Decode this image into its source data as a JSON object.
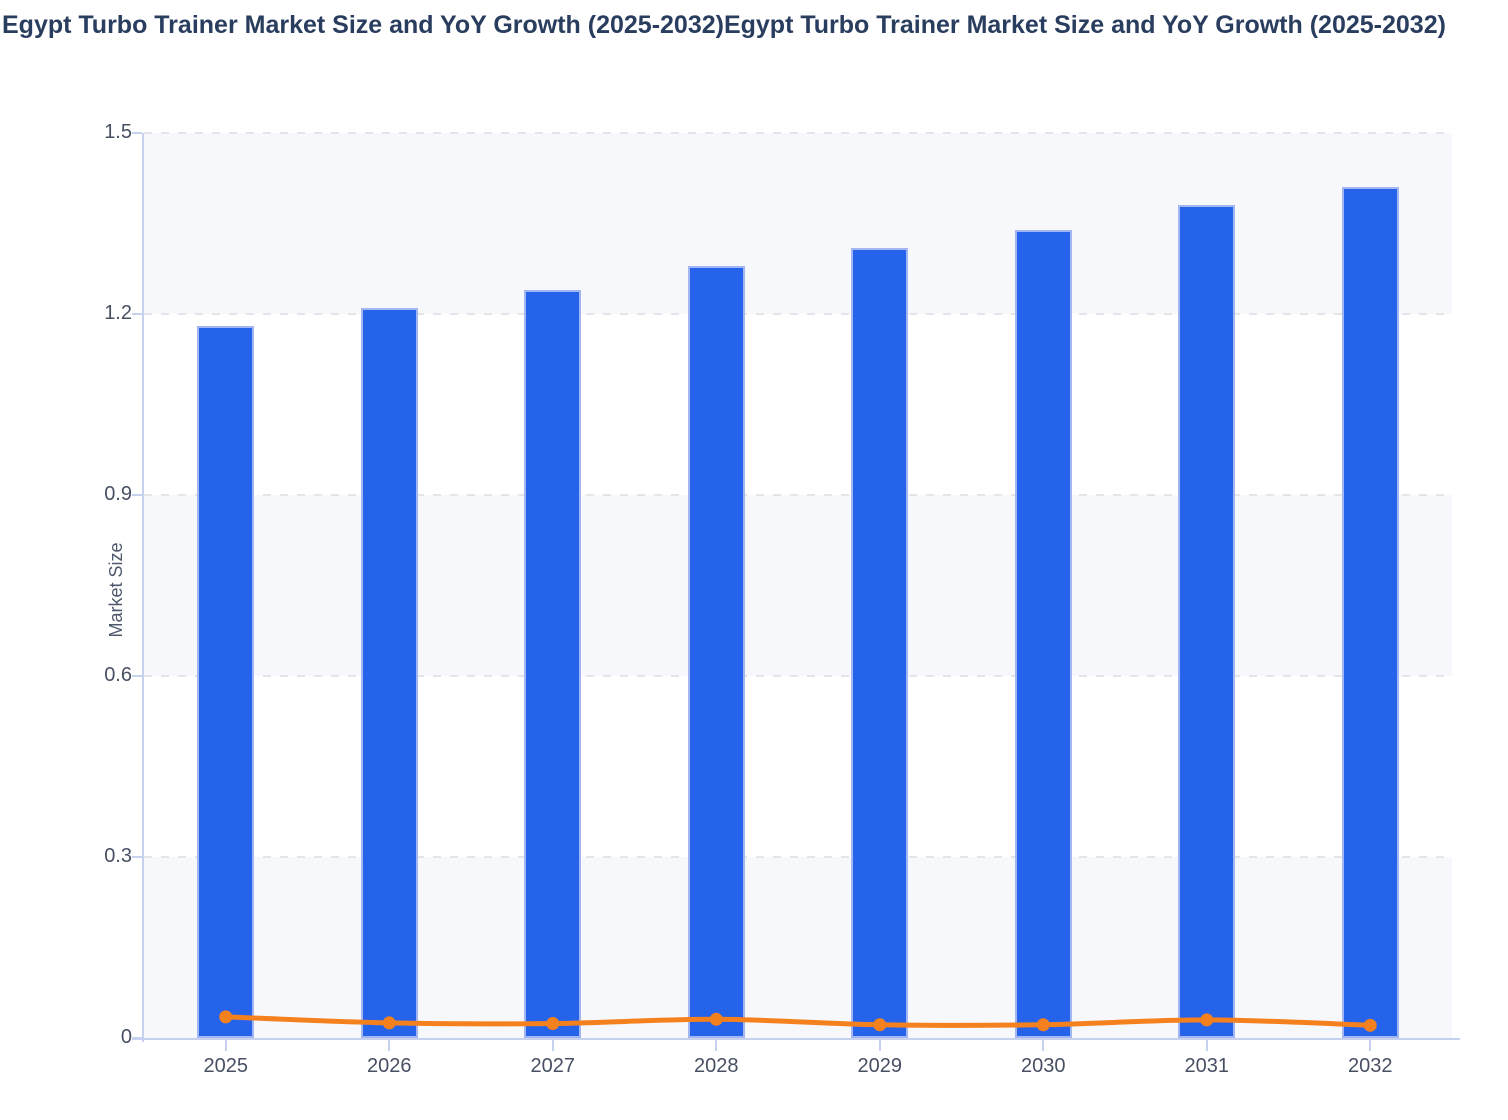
{
  "title": "Egypt Turbo Trainer Market Size and YoY Growth (2025-2032)Egypt Turbo Trainer Market Size and YoY Growth (2025-2032)",
  "colors": {
    "bar_fill": "#2563eb",
    "bar_border": "#a3b6f2",
    "line": "#f5811e",
    "axis_line": "#c5d1ee",
    "gridline": "#e4e5e9",
    "band_light": "#f7f8fb",
    "band_white": "#ffffff",
    "title_text": "#293d5e",
    "tick_text": "#475063",
    "axis_title_text": "#4d586b"
  },
  "chart_data": {
    "type": "bar",
    "subtype": "bar-with-line-overlay",
    "title": "Egypt Turbo Trainer Market Size and YoY Growth (2025-2032)",
    "categories": [
      "2025",
      "2026",
      "2027",
      "2028",
      "2029",
      "2030",
      "2031",
      "2032"
    ],
    "series": [
      {
        "name": "Market Size",
        "type": "bar",
        "values": [
          1.18,
          1.21,
          1.24,
          1.28,
          1.31,
          1.34,
          1.38,
          1.41
        ]
      },
      {
        "name": "YoY Growth",
        "type": "line",
        "values": [
          0.035,
          0.025,
          0.024,
          0.031,
          0.022,
          0.022,
          0.03,
          0.021
        ]
      }
    ],
    "xlabel": "",
    "ylabel": "Market Size",
    "ylim": [
      0,
      1.5
    ],
    "yticks": [
      "0",
      "0.3",
      "0.6",
      "0.9",
      "1.2",
      "1.5"
    ],
    "ytick_values": [
      0,
      0.3,
      0.6,
      0.9,
      1.2,
      1.5
    ],
    "grid": "horizontal-dashed",
    "split_area": "alternating-bands",
    "legend": "none"
  }
}
